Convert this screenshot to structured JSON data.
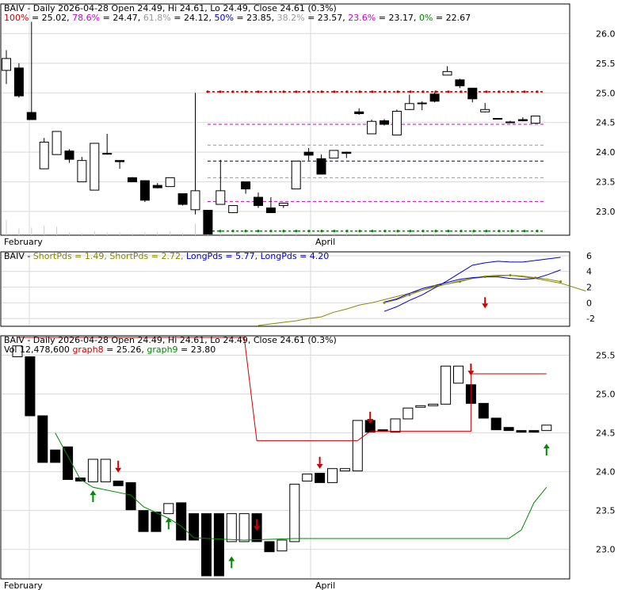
{
  "colors": {
    "text": "#000000",
    "grid": "#d9d9d9",
    "up": "#ffffff",
    "down": "#000000",
    "fib_100": "#cc0000",
    "fib_786": "#cc00cc",
    "fib_618": "#999999",
    "fib_50": "#0000cc",
    "fib_382": "#999999",
    "fib_236": "#cc00cc",
    "fib_0": "#008800",
    "short1": "#0000cc",
    "short2": "#888800",
    "long1": "#0000cc",
    "long2": "#888800",
    "graph8": "#cc0000",
    "graph9": "#008800",
    "arrow_up": "#008800",
    "arrow_down": "#cc0000"
  },
  "chart_data": [
    {
      "type": "candlestick",
      "title": "BAIV - Daily 2026-04-28 Open 24.49, Hi 24.61, Lo 24.49, Close 24.61 (0.3%)",
      "fib_legend": [
        {
          "label": "100%",
          "value": "25.02",
          "color_key": "fib_100"
        },
        {
          "label": "78.6%",
          "value": "24.47",
          "color_key": "fib_786"
        },
        {
          "label": "61.8%",
          "value": "24.12",
          "color_key": "fib_618"
        },
        {
          "label": "50%",
          "value": "23.85",
          "color_key": "fib_50"
        },
        {
          "label": "38.2%",
          "value": "23.57",
          "color_key": "fib_382"
        },
        {
          "label": "23.6%",
          "value": "23.17",
          "color_key": "fib_236"
        },
        {
          "label": "0%",
          "value": "22.67",
          "color_key": "fib_0"
        }
      ],
      "x_labels": [
        "February",
        "April"
      ],
      "ylim": [
        22.6,
        26.5
      ],
      "y_ticks": [
        "26.0",
        "25.5",
        "25.0",
        "24.5",
        "24.0",
        "23.5",
        "23.0"
      ],
      "candles": [
        {
          "o": 25.38,
          "h": 25.72,
          "l": 25.15,
          "c": 25.58
        },
        {
          "o": 25.42,
          "h": 25.5,
          "l": 24.92,
          "c": 24.95
        },
        {
          "o": 24.67,
          "h": 26.2,
          "l": 24.55,
          "c": 24.55
        },
        {
          "o": 23.72,
          "h": 24.24,
          "l": 23.72,
          "c": 24.17
        },
        {
          "o": 23.96,
          "h": 24.35,
          "l": 23.96,
          "c": 24.35
        },
        {
          "o": 24.02,
          "h": 24.05,
          "l": 23.82,
          "c": 23.88
        },
        {
          "o": 23.5,
          "h": 23.92,
          "l": 23.5,
          "c": 23.86
        },
        {
          "o": 23.36,
          "h": 24.15,
          "l": 23.36,
          "c": 24.15
        },
        {
          "o": 23.98,
          "h": 24.31,
          "l": 23.96,
          "c": 23.98
        },
        {
          "o": 23.86,
          "h": 23.86,
          "l": 23.72,
          "c": 23.84
        },
        {
          "o": 23.57,
          "h": 23.58,
          "l": 23.52,
          "c": 23.5
        },
        {
          "o": 23.52,
          "h": 23.52,
          "l": 23.16,
          "c": 23.19
        },
        {
          "o": 23.44,
          "h": 23.48,
          "l": 23.39,
          "c": 23.4
        },
        {
          "o": 23.42,
          "h": 23.57,
          "l": 23.42,
          "c": 23.57
        },
        {
          "o": 23.3,
          "h": 23.3,
          "l": 23.1,
          "c": 23.12
        },
        {
          "o": 23.03,
          "h": 25.0,
          "l": 22.95,
          "c": 23.35
        },
        {
          "o": 23.02,
          "h": 23.02,
          "l": 22.62,
          "c": 22.62
        },
        {
          "o": 23.12,
          "h": 23.87,
          "l": 23.12,
          "c": 23.35
        },
        {
          "o": 22.98,
          "h": 23.1,
          "l": 22.98,
          "c": 23.1
        },
        {
          "o": 23.5,
          "h": 23.5,
          "l": 23.3,
          "c": 23.38
        },
        {
          "o": 23.24,
          "h": 23.32,
          "l": 23.06,
          "c": 23.1
        },
        {
          "o": 23.06,
          "h": 23.24,
          "l": 22.98,
          "c": 22.98
        },
        {
          "o": 23.1,
          "h": 23.15,
          "l": 23.06,
          "c": 23.14
        },
        {
          "o": 23.38,
          "h": 23.85,
          "l": 23.38,
          "c": 23.85
        },
        {
          "o": 24.0,
          "h": 24.07,
          "l": 23.86,
          "c": 23.95
        },
        {
          "o": 23.89,
          "h": 23.96,
          "l": 23.63,
          "c": 23.63
        },
        {
          "o": 23.9,
          "h": 24.03,
          "l": 23.9,
          "c": 24.03
        },
        {
          "o": 24.0,
          "h": 24.01,
          "l": 23.9,
          "c": 23.98
        },
        {
          "o": 24.68,
          "h": 24.74,
          "l": 24.63,
          "c": 24.65
        },
        {
          "o": 24.31,
          "h": 24.55,
          "l": 24.31,
          "c": 24.52
        },
        {
          "o": 24.53,
          "h": 24.56,
          "l": 24.45,
          "c": 24.47
        },
        {
          "o": 24.29,
          "h": 24.72,
          "l": 24.29,
          "c": 24.69
        },
        {
          "o": 24.72,
          "h": 24.97,
          "l": 24.71,
          "c": 24.82
        },
        {
          "o": 24.83,
          "h": 24.86,
          "l": 24.71,
          "c": 24.83
        },
        {
          "o": 24.98,
          "h": 25.01,
          "l": 24.84,
          "c": 24.86
        },
        {
          "o": 25.3,
          "h": 25.45,
          "l": 25.3,
          "c": 25.36
        },
        {
          "o": 25.22,
          "h": 25.24,
          "l": 25.08,
          "c": 25.12
        },
        {
          "o": 25.08,
          "h": 25.08,
          "l": 24.84,
          "c": 24.9
        },
        {
          "o": 24.68,
          "h": 24.83,
          "l": 24.67,
          "c": 24.72
        },
        {
          "o": 24.56,
          "h": 24.57,
          "l": 24.56,
          "c": 24.57
        },
        {
          "o": 24.51,
          "h": 24.53,
          "l": 24.49,
          "c": 24.51
        },
        {
          "o": 24.55,
          "h": 24.59,
          "l": 24.52,
          "c": 24.53
        },
        {
          "o": 24.49,
          "h": 24.61,
          "l": 24.49,
          "c": 24.61
        }
      ],
      "fib_lines": [
        {
          "value": 25.02,
          "color_key": "fib_100",
          "style": "dotted-red"
        },
        {
          "value": 24.47,
          "color_key": "fib_786",
          "style": "dashed"
        },
        {
          "value": 24.12,
          "color_key": "fib_618",
          "style": "dashed"
        },
        {
          "value": 23.85,
          "color_key": "fib_50",
          "style": "dashed"
        },
        {
          "value": 23.57,
          "color_key": "fib_382",
          "style": "dashed"
        },
        {
          "value": 23.17,
          "color_key": "fib_236",
          "style": "dashed"
        },
        {
          "value": 22.67,
          "color_key": "fib_0",
          "style": "dotted-green"
        }
      ],
      "volume": [
        1.6,
        0.7,
        0.8,
        1.0,
        0.9,
        0.3,
        0.2,
        0.4,
        0.3,
        0.3,
        0.2,
        0.3,
        0.3,
        0.4,
        0.2,
        1.2,
        0.5,
        0.4,
        0.2,
        0.2,
        0.2,
        0.2,
        0.5,
        0.2,
        0.3,
        0.2,
        0.2,
        0.3,
        0.2,
        0.2,
        0.1,
        0.1,
        0.3,
        0.1,
        0.2,
        0.1,
        0.2,
        0.4,
        0.3,
        0.2,
        0.2,
        0.2,
        0.3
      ]
    },
    {
      "type": "line",
      "title_parts": [
        {
          "text": "BAIV - ",
          "color_key": "text"
        },
        {
          "text": "ShortPds = 1.49, ",
          "color_key": "short2"
        },
        {
          "text": "ShortPds = 2.72, ",
          "color_key": "short2"
        },
        {
          "text": "LongPds = 5.77, ",
          "color_key": "long1"
        },
        {
          "text": "LongPds = 4.20",
          "color_key": "long1"
        }
      ],
      "ylim": [
        -3,
        6.5
      ],
      "y_ticks": [
        "6",
        "4",
        "2",
        "0",
        "-2"
      ],
      "series": [
        {
          "color_key": "long2",
          "start": 20,
          "values": [
            -2.9,
            -2.7,
            -2.5,
            -2.3,
            -2.0,
            -1.8,
            -1.2,
            -0.8,
            -0.3,
            0.0,
            0.4,
            0.8,
            1.2,
            1.6,
            2.0,
            2.4,
            2.8,
            3.1,
            3.4,
            3.5,
            3.5,
            3.3,
            3.1,
            2.8,
            2.5,
            2.0,
            1.5
          ]
        },
        {
          "color_key": "long1",
          "start": 30,
          "values": [
            -1.1,
            -0.5,
            0.3,
            1.0,
            1.9,
            2.8,
            3.8,
            4.8,
            5.1,
            5.3,
            5.2,
            5.2,
            5.4,
            5.6,
            5.8
          ]
        },
        {
          "color_key": "short2",
          "start": 30,
          "values": [
            0.0,
            0.4,
            1.0,
            1.6,
            2.1,
            2.4,
            2.7,
            3.1,
            3.3,
            3.4,
            3.5,
            3.4,
            3.2,
            3.0,
            2.7
          ]
        },
        {
          "color_key": "short1",
          "start": 30,
          "values": [
            0.1,
            0.5,
            1.2,
            1.8,
            2.2,
            2.6,
            3.0,
            3.2,
            3.3,
            3.3,
            3.1,
            3.0,
            3.1,
            3.6,
            4.2
          ]
        }
      ],
      "arrows": [
        {
          "index": 38,
          "value": -0.1,
          "dir": "down"
        }
      ]
    },
    {
      "type": "candlestick",
      "title": "BAIV - Daily 2026-04-28 Open 24.49, Hi 24.61, Lo 24.49, Close 24.61 (0.3%)",
      "legend_parts": [
        {
          "text": "Vol 12,478,600 ",
          "color_key": "text"
        },
        {
          "text": "graph8",
          "color_key": "graph8"
        },
        {
          "text": " = 25.26, ",
          "color_key": "text"
        },
        {
          "text": "graph9",
          "color_key": "graph9"
        },
        {
          "text": " = 23.80",
          "color_key": "text"
        }
      ],
      "x_labels": [
        "February",
        "April"
      ],
      "ylim": [
        22.62,
        25.75
      ],
      "y_ticks": [
        "25.5",
        "25.0",
        "24.5",
        "24.0",
        "23.5",
        "23.0"
      ],
      "candles": [
        {
          "o": 25.48,
          "c": 25.62
        },
        {
          "o": 25.48,
          "c": 24.72
        },
        {
          "o": 24.72,
          "c": 24.12
        },
        {
          "o": 24.28,
          "c": 24.12
        },
        {
          "o": 24.32,
          "c": 23.9
        },
        {
          "o": 23.92,
          "c": 23.88
        },
        {
          "o": 23.87,
          "c": 24.16
        },
        {
          "o": 23.87,
          "c": 24.16
        },
        {
          "o": 23.88,
          "c": 23.82
        },
        {
          "o": 23.86,
          "c": 23.51
        },
        {
          "o": 23.5,
          "c": 23.23
        },
        {
          "o": 23.48,
          "c": 23.23
        },
        {
          "o": 23.46,
          "c": 23.59
        },
        {
          "o": 23.6,
          "c": 23.12
        },
        {
          "o": 23.46,
          "c": 23.12
        },
        {
          "o": 23.46,
          "c": 22.66
        },
        {
          "o": 23.46,
          "c": 22.66
        },
        {
          "o": 23.1,
          "c": 23.46
        },
        {
          "o": 23.1,
          "c": 23.46
        },
        {
          "o": 23.46,
          "c": 23.1
        },
        {
          "o": 23.1,
          "c": 22.97
        },
        {
          "o": 22.98,
          "c": 23.12
        },
        {
          "o": 23.1,
          "c": 23.84
        },
        {
          "o": 23.88,
          "c": 23.97
        },
        {
          "o": 23.98,
          "c": 23.86
        },
        {
          "o": 23.86,
          "c": 24.04
        },
        {
          "o": 24.01,
          "c": 24.04
        },
        {
          "o": 24.01,
          "c": 24.66
        },
        {
          "o": 24.66,
          "c": 24.51
        },
        {
          "o": 24.54,
          "c": 24.53
        },
        {
          "o": 24.51,
          "c": 24.68
        },
        {
          "o": 24.68,
          "c": 24.82
        },
        {
          "o": 24.84,
          "c": 24.85
        },
        {
          "o": 24.85,
          "c": 24.87
        },
        {
          "o": 24.87,
          "c": 25.36
        },
        {
          "o": 25.14,
          "c": 25.36
        },
        {
          "o": 25.12,
          "c": 24.88
        },
        {
          "o": 24.88,
          "c": 24.69
        },
        {
          "o": 24.69,
          "c": 24.54
        },
        {
          "o": 24.57,
          "c": 24.53
        },
        {
          "o": 24.53,
          "c": 24.52
        },
        {
          "o": 24.53,
          "c": 24.52
        },
        {
          "o": 24.53,
          "c": 24.6
        }
      ],
      "graph8": [
        {
          "i": 0,
          "v": null
        },
        {
          "i": 18,
          "v": 25.73
        },
        {
          "i": 19,
          "v": 24.4
        },
        {
          "i": 27,
          "v": 24.4
        },
        {
          "i": 28,
          "v": 24.52
        },
        {
          "i": 36,
          "v": 24.52
        },
        {
          "i": 36,
          "v": 25.26
        },
        {
          "i": 42,
          "v": 25.26
        }
      ],
      "graph9": [
        {
          "i": 3,
          "v": 24.5
        },
        {
          "i": 4,
          "v": 24.2
        },
        {
          "i": 5,
          "v": 23.9
        },
        {
          "i": 6,
          "v": 23.8
        },
        {
          "i": 9,
          "v": 23.7
        },
        {
          "i": 10,
          "v": 23.55
        },
        {
          "i": 12,
          "v": 23.4
        },
        {
          "i": 13,
          "v": 23.3
        },
        {
          "i": 14,
          "v": 23.15
        },
        {
          "i": 18,
          "v": 23.12
        },
        {
          "i": 22,
          "v": 23.14
        },
        {
          "i": 39,
          "v": 23.14
        },
        {
          "i": 40,
          "v": 23.25
        },
        {
          "i": 41,
          "v": 23.6
        },
        {
          "i": 42,
          "v": 23.8
        }
      ],
      "arrows": [
        {
          "index": 8,
          "value": 24.05,
          "dir": "down"
        },
        {
          "index": 6,
          "value": 23.7,
          "dir": "up"
        },
        {
          "index": 12,
          "value": 23.35,
          "dir": "up"
        },
        {
          "index": 17,
          "value": 22.85,
          "dir": "up"
        },
        {
          "index": 19,
          "value": 23.3,
          "dir": "down"
        },
        {
          "index": 24,
          "value": 24.1,
          "dir": "down"
        },
        {
          "index": 28,
          "value": 24.68,
          "dir": "down"
        },
        {
          "index": 36,
          "value": 25.3,
          "dir": "down"
        },
        {
          "index": 42,
          "value": 24.3,
          "dir": "up"
        }
      ]
    }
  ]
}
